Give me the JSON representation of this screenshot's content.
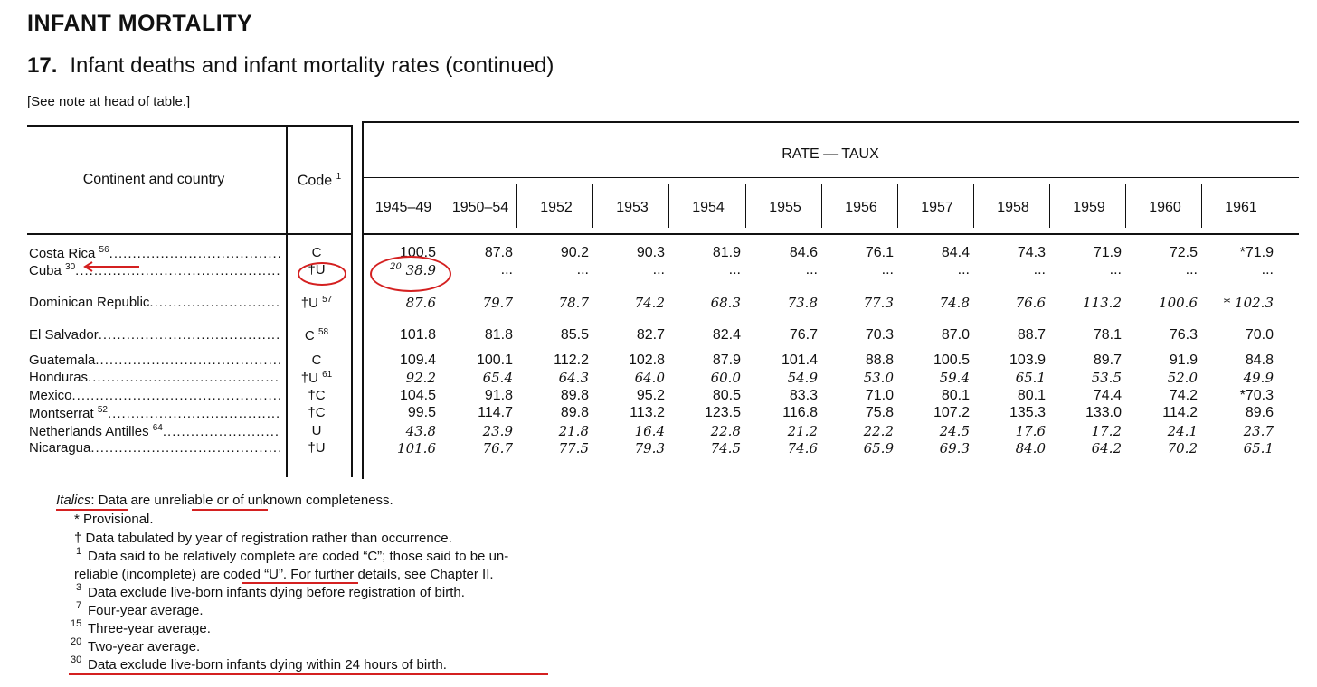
{
  "header": {
    "section": "INFANT MORTALITY",
    "number": "17.",
    "title": "Infant deaths and infant mortality rates (continued)",
    "note": "[See note at head of table.]"
  },
  "columns": {
    "country": "Continent and country",
    "code": "Code",
    "code_sup": "1",
    "rate": "RATE — TAUX",
    "years": [
      "1945–49",
      "1950–54",
      "1952",
      "1953",
      "1954",
      "1955",
      "1956",
      "1957",
      "1958",
      "1959",
      "1960",
      "1961"
    ]
  },
  "rows": [
    {
      "name": "Costa Rica",
      "sup": "56",
      "code": "C",
      "code_sup": "",
      "values": [
        "100.5",
        "87.8",
        "90.2",
        "90.3",
        "81.9",
        "84.6",
        "76.1",
        "84.4",
        "74.3",
        "71.9",
        "72.5",
        "*71.9"
      ],
      "italic": [
        false,
        false,
        false,
        false,
        false,
        false,
        false,
        false,
        false,
        false,
        false,
        false
      ]
    },
    {
      "name": "Cuba",
      "sup": "30",
      "code": "†U",
      "code_sup": "",
      "first_sup": "20",
      "values": [
        "38.9",
        "...",
        "...",
        "...",
        "...",
        "...",
        "...",
        "...",
        "...",
        "...",
        "...",
        "..."
      ],
      "italic": [
        true,
        false,
        false,
        false,
        false,
        false,
        false,
        false,
        false,
        false,
        false,
        false
      ]
    },
    {
      "name": "Dominican Republic",
      "sup": "",
      "code": "†U",
      "code_sup": "57",
      "values": [
        "87.6",
        "79.7",
        "78.7",
        "74.2",
        "68.3",
        "73.8",
        "77.3",
        "74.8",
        "76.6",
        "113.2",
        "100.6",
        "* 102.3"
      ],
      "italic": [
        true,
        true,
        true,
        true,
        true,
        true,
        true,
        true,
        true,
        true,
        true,
        true
      ]
    },
    {
      "name": "El Salvador",
      "sup": "",
      "code": "C",
      "code_sup": "58",
      "values": [
        "101.8",
        "81.8",
        "85.5",
        "82.7",
        "82.4",
        "76.7",
        "70.3",
        "87.0",
        "88.7",
        "78.1",
        "76.3",
        "70.0"
      ],
      "italic": [
        false,
        false,
        false,
        false,
        false,
        false,
        false,
        false,
        false,
        false,
        false,
        false
      ]
    },
    {
      "name": "Guatemala",
      "sup": "",
      "code": "C",
      "code_sup": "",
      "values": [
        "109.4",
        "100.1",
        "112.2",
        "102.8",
        "87.9",
        "101.4",
        "88.8",
        "100.5",
        "103.9",
        "89.7",
        "91.9",
        "84.8"
      ],
      "italic": [
        false,
        false,
        false,
        false,
        false,
        false,
        false,
        false,
        false,
        false,
        false,
        false
      ]
    },
    {
      "name": "Honduras",
      "sup": "",
      "code": "†U",
      "code_sup": "61",
      "values": [
        "92.2",
        "65.4",
        "64.3",
        "64.0",
        "60.0",
        "54.9",
        "53.0",
        "59.4",
        "65.1",
        "53.5",
        "52.0",
        "49.9"
      ],
      "italic": [
        true,
        true,
        true,
        true,
        true,
        true,
        true,
        true,
        true,
        true,
        true,
        true
      ]
    },
    {
      "name": "Mexico",
      "sup": "",
      "code": "†C",
      "code_sup": "",
      "values": [
        "104.5",
        "91.8",
        "89.8",
        "95.2",
        "80.5",
        "83.3",
        "71.0",
        "80.1",
        "80.1",
        "74.4",
        "74.2",
        "*70.3"
      ],
      "italic": [
        false,
        false,
        false,
        false,
        false,
        false,
        false,
        false,
        false,
        false,
        false,
        false
      ]
    },
    {
      "name": "Montserrat",
      "sup": "52",
      "code": "†C",
      "code_sup": "",
      "values": [
        "99.5",
        "114.7",
        "89.8",
        "113.2",
        "123.5",
        "116.8",
        "75.8",
        "107.2",
        "135.3",
        "133.0",
        "114.2",
        "89.6"
      ],
      "italic": [
        false,
        false,
        false,
        false,
        false,
        false,
        false,
        false,
        false,
        false,
        false,
        false
      ]
    },
    {
      "name": "Netherlands Antilles",
      "sup": "64",
      "code": "U",
      "code_sup": "",
      "values": [
        "43.8",
        "23.9",
        "21.8",
        "16.4",
        "22.8",
        "21.2",
        "22.2",
        "24.5",
        "17.6",
        "17.2",
        "24.1",
        "23.7"
      ],
      "italic": [
        true,
        true,
        true,
        true,
        true,
        true,
        true,
        true,
        true,
        true,
        true,
        true
      ]
    },
    {
      "name": "Nicaragua",
      "sup": "",
      "code": "†U",
      "code_sup": "",
      "values": [
        "101.6",
        "76.7",
        "77.5",
        "79.3",
        "74.5",
        "74.6",
        "65.9",
        "69.3",
        "84.0",
        "64.2",
        "70.2",
        "65.1"
      ],
      "italic": [
        true,
        true,
        true,
        true,
        true,
        true,
        true,
        true,
        true,
        true,
        true,
        true
      ]
    }
  ],
  "footnotes": {
    "italics_label": "Italics",
    "italics_text": ": Data are unreliable or of unknown completeness.",
    "provisional": "* Provisional.",
    "dagger": "† Data tabulated by year of registration rather than occurrence.",
    "n1_sym": "1",
    "n1_line1": "Data said to be relatively complete are coded “C”; those said to be un-",
    "n1_line2": "reliable (incomplete) are coded “U”. For further details, see Chapter II.",
    "n3_sym": "3",
    "n3": "Data exclude live-born infants dying before registration of birth.",
    "n7_sym": "7",
    "n7": "Four-year average.",
    "n15_sym": "15",
    "n15": "Three-year average.",
    "n20_sym": "20",
    "n20": "Two-year average.",
    "n30_sym": "30",
    "n30": "Data exclude live-born infants dying within 24 hours of birth."
  },
  "annotation_color": "#d42020"
}
